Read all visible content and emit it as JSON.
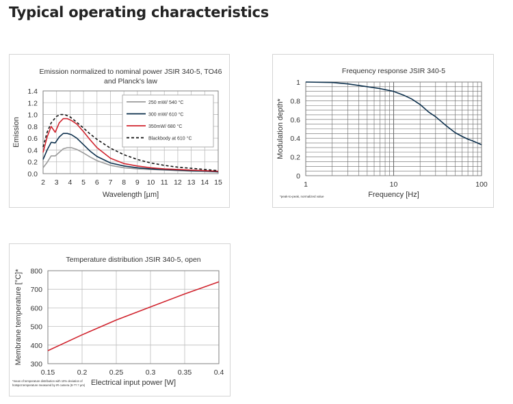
{
  "page": {
    "heading": "Typical operating characteristics"
  },
  "chart_data": [
    {
      "id": "emission",
      "type": "line",
      "title_lines": [
        "Emission normalized to nominal power JSIR 340-5, TO46",
        "and Planck's law"
      ],
      "xlabel": "Wavelength [µm]",
      "ylabel": "Emission",
      "xlim": [
        2,
        15
      ],
      "ylim": [
        0,
        1.4
      ],
      "xticks": [
        2,
        3,
        4,
        5,
        6,
        7,
        8,
        9,
        10,
        11,
        12,
        13,
        14,
        15
      ],
      "yticks": [
        0.0,
        0.2,
        0.4,
        0.6,
        0.8,
        1.0,
        1.2,
        1.4
      ],
      "ytick_labels": [
        "0.0",
        "0.2",
        "0.4",
        "0.6",
        "0.8",
        "1.0",
        "1.2",
        "1.4"
      ],
      "grid": true,
      "legend_position": "top-right",
      "series": [
        {
          "name": "250 mW/ 540 °C",
          "color": "#9a9a9a",
          "dash": "",
          "x": [
            2,
            2.3,
            2.6,
            2.9,
            3.2,
            3.5,
            3.8,
            4.1,
            4.5,
            5,
            5.5,
            6,
            7,
            8,
            9,
            10,
            11,
            12,
            13,
            14,
            15
          ],
          "y": [
            0.1,
            0.19,
            0.3,
            0.3,
            0.36,
            0.42,
            0.44,
            0.44,
            0.41,
            0.35,
            0.28,
            0.22,
            0.14,
            0.1,
            0.08,
            0.07,
            0.06,
            0.05,
            0.04,
            0.04,
            0.03
          ]
        },
        {
          "name": "300 mW/ 610 °C",
          "color": "#0b2f4c",
          "dash": "",
          "x": [
            2,
            2.3,
            2.6,
            2.9,
            3.2,
            3.5,
            3.8,
            4.1,
            4.5,
            5,
            5.5,
            6,
            7,
            8,
            9,
            10,
            11,
            12,
            13,
            14,
            15
          ],
          "y": [
            0.24,
            0.4,
            0.53,
            0.52,
            0.62,
            0.68,
            0.68,
            0.66,
            0.6,
            0.49,
            0.38,
            0.29,
            0.18,
            0.13,
            0.1,
            0.08,
            0.07,
            0.06,
            0.05,
            0.04,
            0.03
          ]
        },
        {
          "name": "350mW/ 680 °C",
          "color": "#d0222c",
          "dash": "",
          "x": [
            2,
            2.3,
            2.6,
            2.9,
            3.2,
            3.5,
            3.8,
            4.1,
            4.5,
            5,
            5.5,
            6,
            7,
            8,
            9,
            10,
            11,
            12,
            13,
            14,
            15
          ],
          "y": [
            0.36,
            0.62,
            0.8,
            0.7,
            0.86,
            0.93,
            0.93,
            0.9,
            0.84,
            0.71,
            0.57,
            0.44,
            0.26,
            0.17,
            0.13,
            0.1,
            0.08,
            0.07,
            0.06,
            0.05,
            0.04
          ]
        },
        {
          "name": "Blackbody at 610 °C",
          "color": "#111111",
          "dash": "4,3",
          "x": [
            2,
            2.3,
            2.6,
            3,
            3.3,
            3.6,
            4,
            4.5,
            5,
            5.5,
            6,
            7,
            8,
            9,
            10,
            11,
            12,
            13,
            14,
            15
          ],
          "y": [
            0.45,
            0.7,
            0.86,
            0.97,
            1.0,
            1.0,
            0.96,
            0.87,
            0.77,
            0.67,
            0.58,
            0.43,
            0.32,
            0.24,
            0.18,
            0.14,
            0.11,
            0.09,
            0.07,
            0.05
          ]
        }
      ]
    },
    {
      "id": "frequency",
      "type": "line",
      "title_lines": [
        "Frequency response JSIR 340-5"
      ],
      "xlabel": "Frequency [Hz]",
      "ylabel": "Modulation depth*",
      "xscale": "log",
      "xlim": [
        1,
        100
      ],
      "ylim": [
        0,
        1
      ],
      "xticks": [
        1,
        10,
        100
      ],
      "xtick_labels": [
        "1",
        "10",
        "100"
      ],
      "yticks": [
        0,
        0.2,
        0.4,
        0.6,
        0.8,
        1
      ],
      "ytick_labels": [
        "0",
        "0.2",
        "0.4",
        "0.6",
        "0.8",
        "1"
      ],
      "grid": true,
      "footnote": "*peak-to-peak, normalized value",
      "series": [
        {
          "color": "#0b2f4c",
          "dash": "",
          "x": [
            1,
            2,
            3,
            5,
            7,
            10,
            13,
            16,
            20,
            25,
            30,
            40,
            50,
            60,
            70,
            80,
            90,
            100
          ],
          "y": [
            1.0,
            0.995,
            0.98,
            0.95,
            0.93,
            0.9,
            0.86,
            0.82,
            0.76,
            0.68,
            0.63,
            0.53,
            0.46,
            0.42,
            0.39,
            0.37,
            0.35,
            0.33
          ]
        }
      ]
    },
    {
      "id": "temperature",
      "type": "line",
      "title_lines": [
        "Temperature distribution JSIR 340-5, open"
      ],
      "xlabel": "Electrical input power [W]",
      "ylabel": "Membrane temperature [°C]*",
      "xlim": [
        0.15,
        0.4
      ],
      "ylim": [
        300,
        800
      ],
      "xticks": [
        0.15,
        0.2,
        0.25,
        0.3,
        0.35,
        0.4
      ],
      "xtick_labels": [
        "0.15",
        "0.2",
        "0.25",
        "0.3",
        "0.35",
        "0.4"
      ],
      "yticks": [
        300,
        400,
        500,
        600,
        700,
        800
      ],
      "ytick_labels": [
        "300",
        "400",
        "500",
        "600",
        "700",
        "800"
      ],
      "grid": true,
      "footnote_lines": [
        "*mean of temperature distribution with 10% deviation of",
        "hotspot temperature measured by IR camera (8-??.? µm)"
      ],
      "series": [
        {
          "color": "#d0222c",
          "dash": "",
          "x": [
            0.15,
            0.2,
            0.25,
            0.3,
            0.35,
            0.4
          ],
          "y": [
            370,
            455,
            535,
            605,
            675,
            740
          ]
        }
      ]
    }
  ]
}
